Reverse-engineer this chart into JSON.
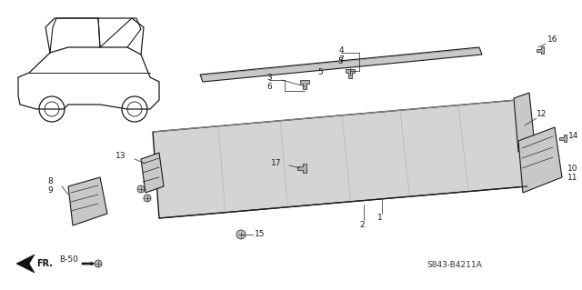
{
  "bg_color": "#ffffff",
  "diagram_code": "S843-B4211A",
  "dark": "#1a1a1a",
  "gray": "#aaaaaa",
  "light_gray": "#d0d0d0",
  "mid_gray": "#888888"
}
